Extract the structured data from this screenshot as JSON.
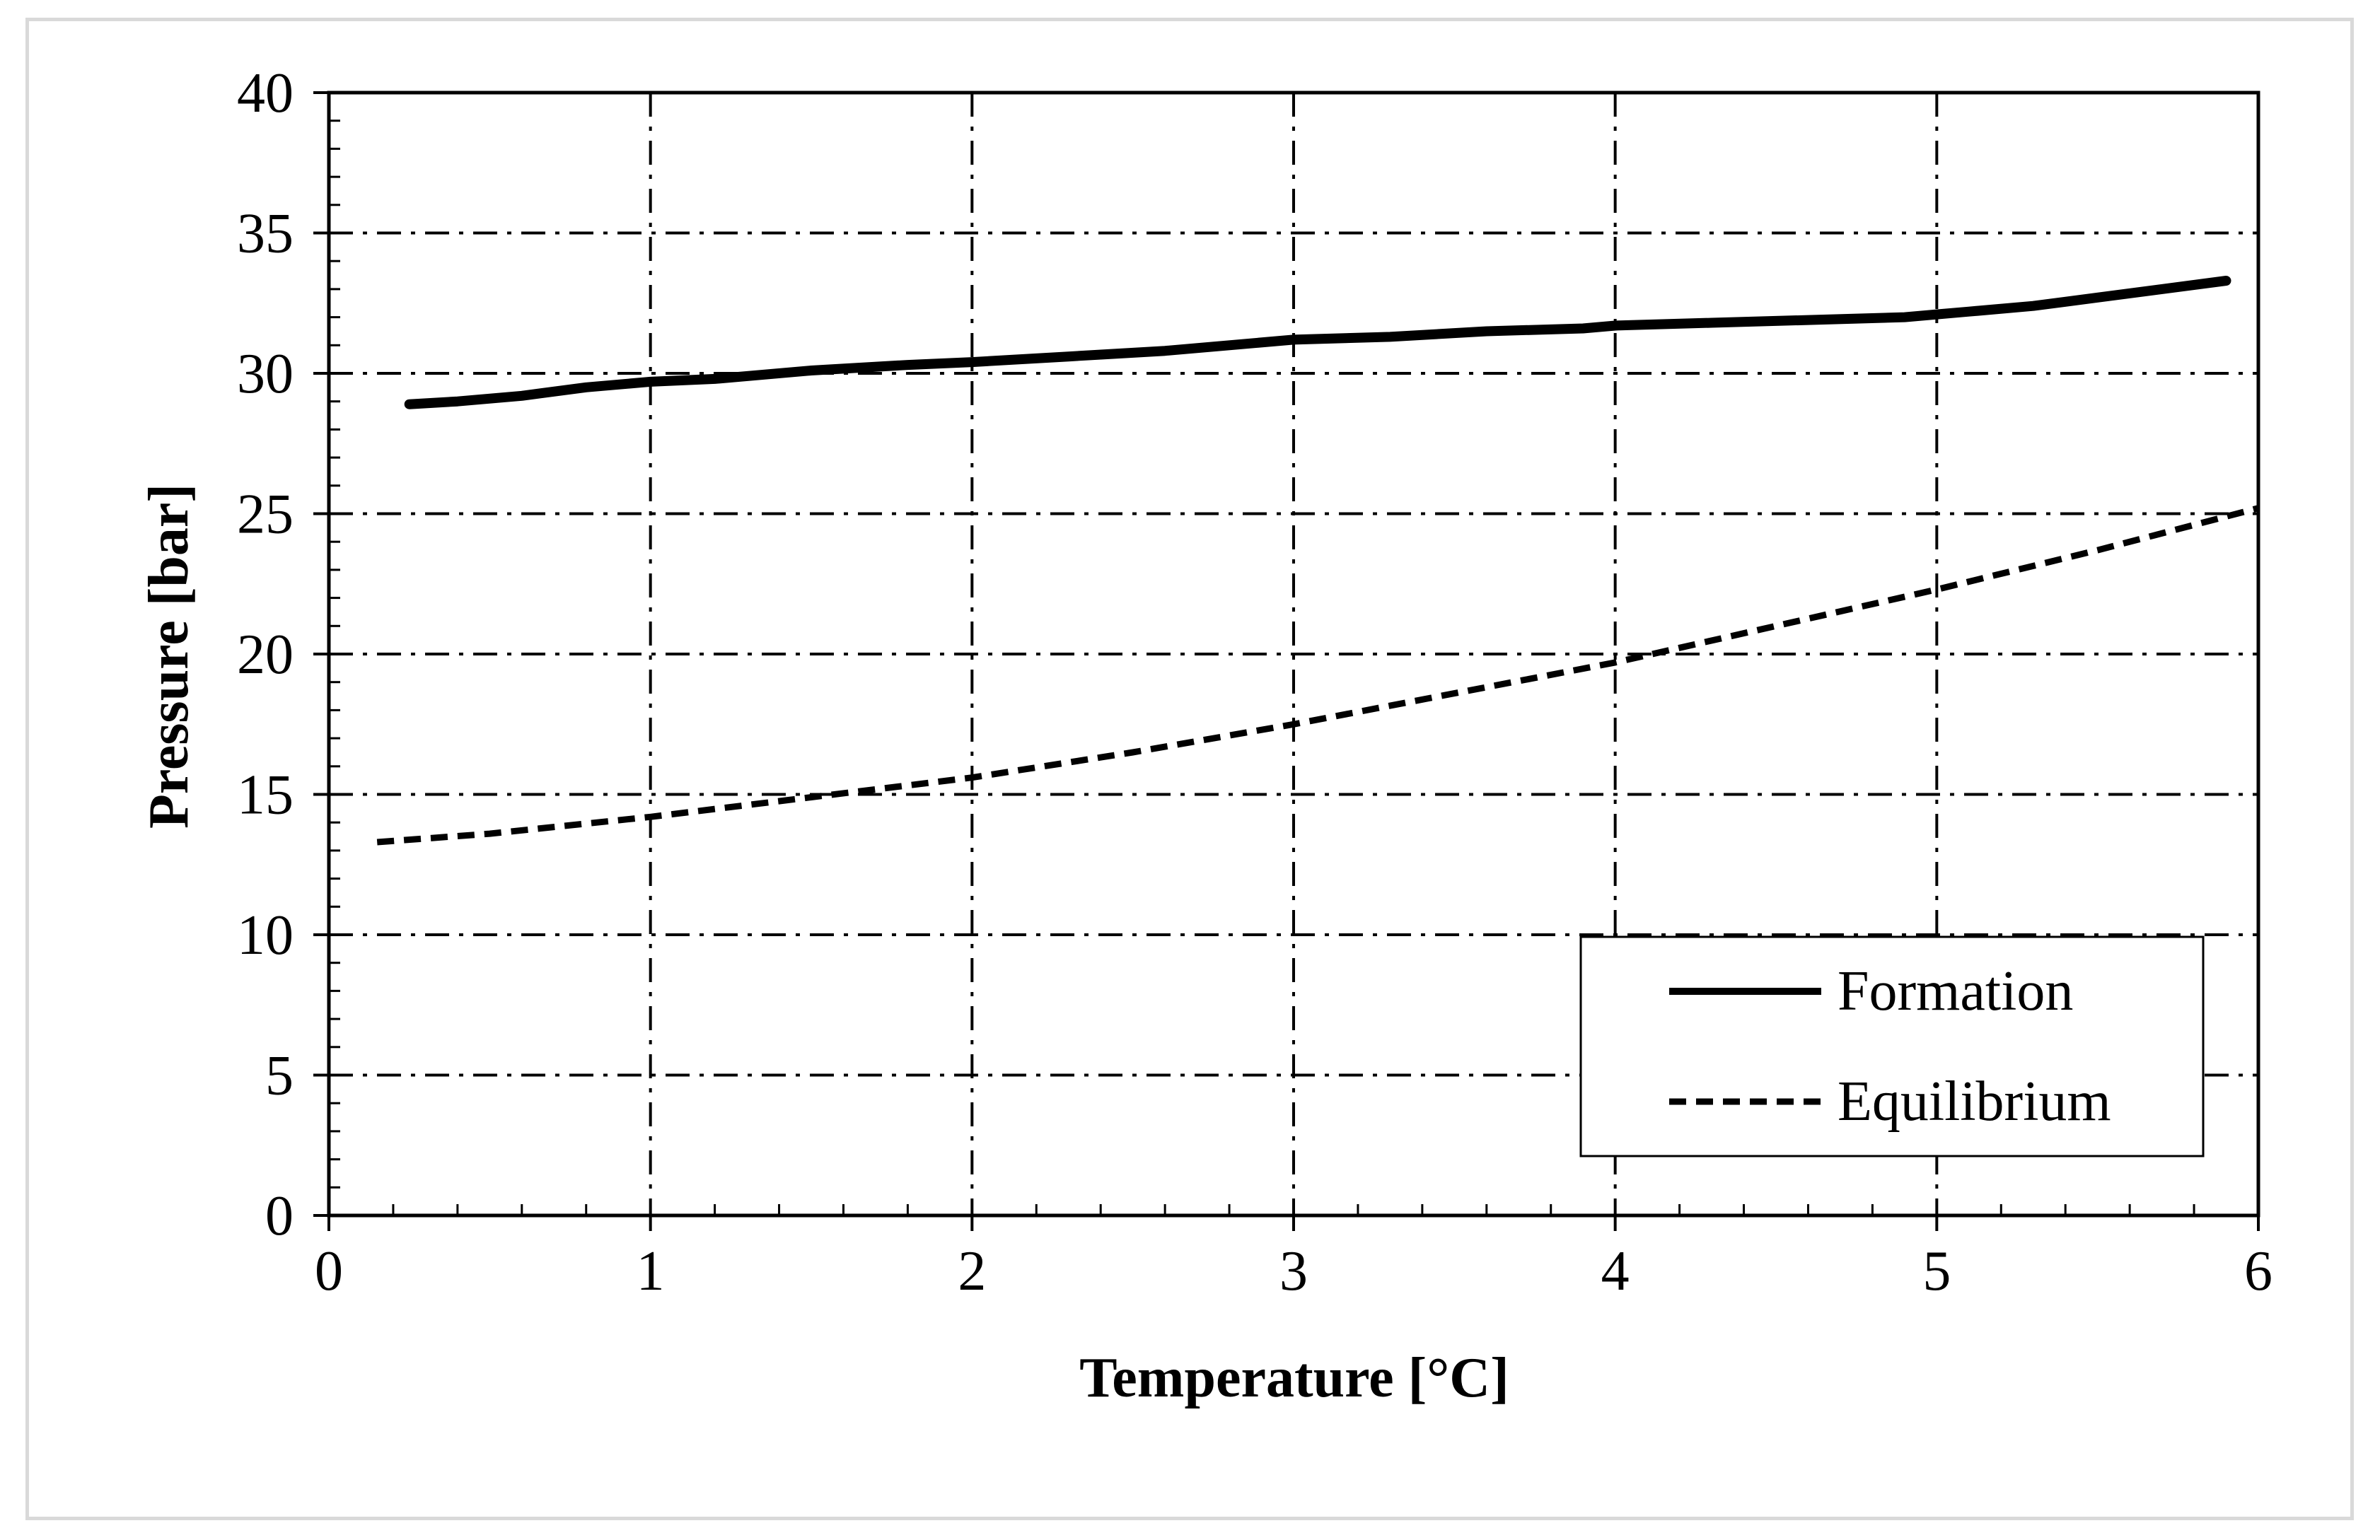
{
  "chart_data": {
    "type": "line",
    "title": "",
    "xlabel": "Temperature [°C]",
    "ylabel": "Pressure [bar]",
    "xlim": [
      0,
      6
    ],
    "ylim": [
      0,
      40
    ],
    "x_ticks": [
      0,
      1,
      2,
      3,
      4,
      5,
      6
    ],
    "y_ticks": [
      0,
      5,
      10,
      15,
      20,
      25,
      30,
      35,
      40
    ],
    "grid": "major, dash-dot",
    "legend_position": "bottom-right",
    "series": [
      {
        "name": "Formation",
        "style": "solid",
        "color": "#000000",
        "x": [
          0.25,
          0.4,
          0.6,
          0.8,
          1.0,
          1.2,
          1.5,
          1.8,
          2.0,
          2.3,
          2.6,
          3.0,
          3.3,
          3.6,
          3.9,
          4.0,
          4.3,
          4.6,
          4.9,
          5.0,
          5.1,
          5.3,
          5.5,
          5.7,
          5.9
        ],
        "y": [
          28.9,
          29.0,
          29.2,
          29.5,
          29.7,
          29.8,
          30.1,
          30.3,
          30.4,
          30.6,
          30.8,
          31.2,
          31.3,
          31.5,
          31.6,
          31.7,
          31.8,
          31.9,
          32.0,
          32.1,
          32.2,
          32.4,
          32.7,
          33.0,
          33.3
        ]
      },
      {
        "name": "Equilibrium",
        "style": "dashed",
        "color": "#000000",
        "x": [
          0.15,
          0.5,
          1.0,
          1.5,
          2.0,
          2.5,
          3.0,
          3.5,
          4.0,
          4.5,
          5.0,
          5.5,
          6.0
        ],
        "y": [
          13.3,
          13.6,
          14.2,
          14.9,
          15.6,
          16.5,
          17.5,
          18.6,
          19.7,
          21.0,
          22.3,
          23.7,
          25.2
        ]
      }
    ]
  }
}
